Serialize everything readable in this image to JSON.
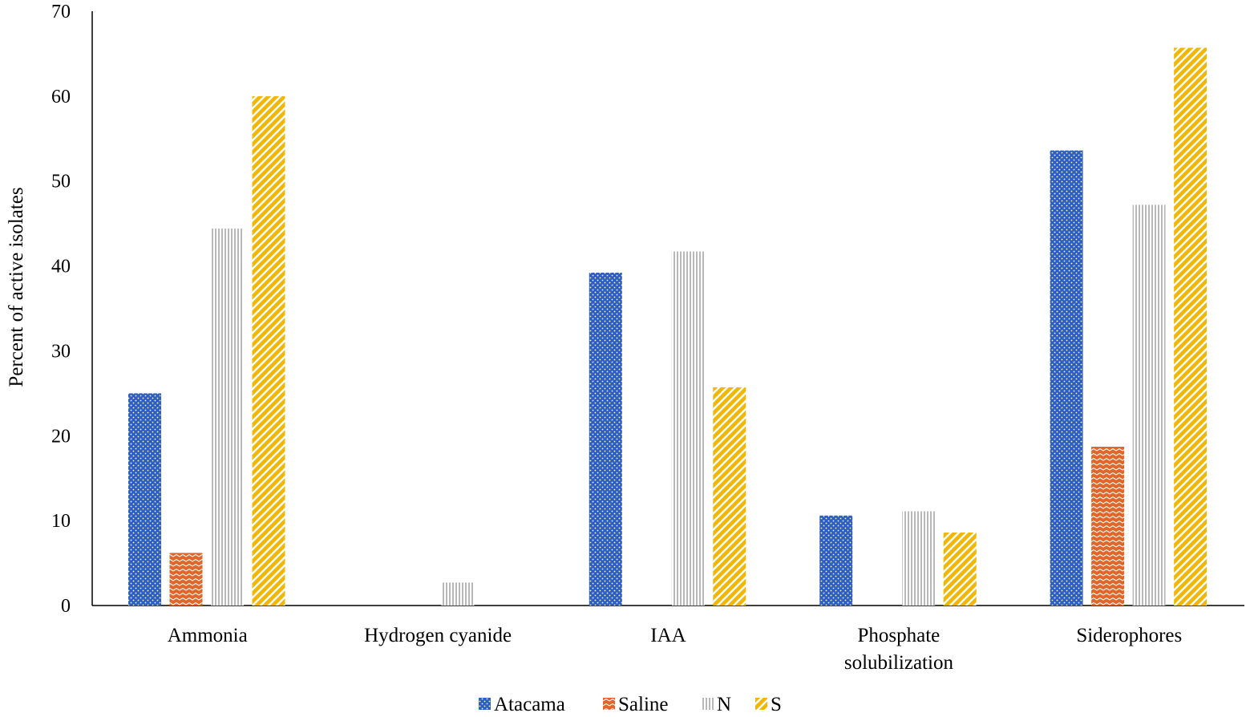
{
  "chart_data": {
    "type": "bar",
    "title": "",
    "xlabel": "",
    "ylabel": "Percent of active isolates",
    "ylim": [
      0,
      70
    ],
    "yticks": [
      0,
      10,
      20,
      30,
      40,
      50,
      60,
      70
    ],
    "grid": false,
    "legend_position": "bottom",
    "categories": [
      [
        "Ammonia"
      ],
      [
        "Hydrogen cyanide"
      ],
      [
        "IAA"
      ],
      [
        "Phosphate",
        "solubilization"
      ],
      [
        "Siderophores"
      ]
    ],
    "series": [
      {
        "name": "Atacama",
        "color": "#2E5FBF",
        "pattern": "dots",
        "values": [
          25.0,
          0,
          39.2,
          10.6,
          53.6
        ]
      },
      {
        "name": "Saline",
        "color": "#E0662A",
        "pattern": "zigzag",
        "values": [
          6.2,
          0,
          0,
          0,
          18.7
        ]
      },
      {
        "name": "N",
        "color": "#B8B8B8",
        "pattern": "vertical-lines",
        "values": [
          44.4,
          2.7,
          41.7,
          11.1,
          47.2
        ]
      },
      {
        "name": "S",
        "color": "#F2B705",
        "pattern": "diagonal-stripes",
        "values": [
          60.0,
          0,
          25.7,
          8.6,
          65.7
        ]
      }
    ]
  }
}
